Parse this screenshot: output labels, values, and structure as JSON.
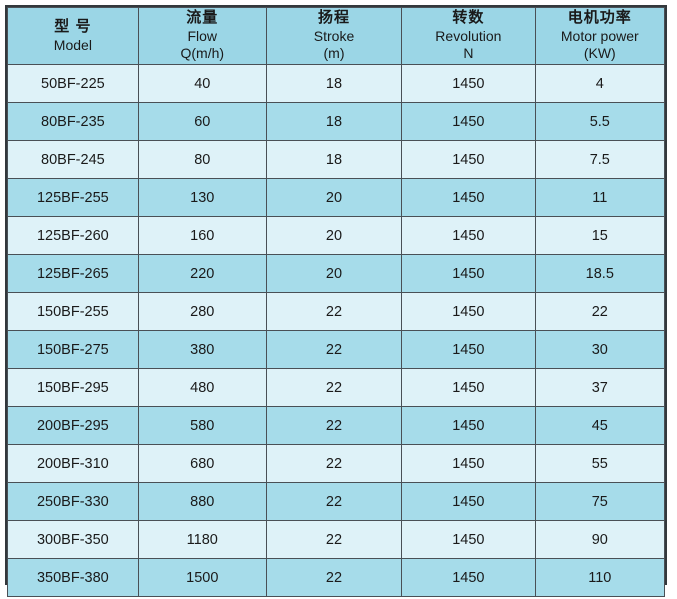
{
  "colors": {
    "header_bg": "#9bd6e6",
    "row_dark": "#a6dcea",
    "row_light": "#def2f8",
    "border_outer": "#33383c",
    "border_inner": "#495056",
    "text": "#1a1a1a"
  },
  "table": {
    "columns": [
      {
        "key": "model",
        "lines": [
          "型 号",
          "Model"
        ]
      },
      {
        "key": "flow",
        "lines": [
          "流量",
          "Flow",
          "Q(m/h)"
        ]
      },
      {
        "key": "stroke",
        "lines": [
          "扬程",
          "Stroke",
          "(m)"
        ]
      },
      {
        "key": "revolution",
        "lines": [
          "转数",
          "Revolution",
          "N"
        ]
      },
      {
        "key": "motor_power",
        "lines": [
          "电机功率",
          "Motor power",
          "(KW)"
        ]
      }
    ],
    "rows": [
      {
        "model": "50BF-225",
        "flow": "40",
        "stroke": "18",
        "revolution": "1450",
        "motor_power": "4"
      },
      {
        "model": "80BF-235",
        "flow": "60",
        "stroke": "18",
        "revolution": "1450",
        "motor_power": "5.5"
      },
      {
        "model": "80BF-245",
        "flow": "80",
        "stroke": "18",
        "revolution": "1450",
        "motor_power": "7.5"
      },
      {
        "model": "125BF-255",
        "flow": "130",
        "stroke": "20",
        "revolution": "1450",
        "motor_power": "11"
      },
      {
        "model": "125BF-260",
        "flow": "160",
        "stroke": "20",
        "revolution": "1450",
        "motor_power": "15"
      },
      {
        "model": "125BF-265",
        "flow": "220",
        "stroke": "20",
        "revolution": "1450",
        "motor_power": "18.5"
      },
      {
        "model": "150BF-255",
        "flow": "280",
        "stroke": "22",
        "revolution": "1450",
        "motor_power": "22"
      },
      {
        "model": "150BF-275",
        "flow": "380",
        "stroke": "22",
        "revolution": "1450",
        "motor_power": "30"
      },
      {
        "model": "150BF-295",
        "flow": "480",
        "stroke": "22",
        "revolution": "1450",
        "motor_power": "37"
      },
      {
        "model": "200BF-295",
        "flow": "580",
        "stroke": "22",
        "revolution": "1450",
        "motor_power": "45"
      },
      {
        "model": "200BF-310",
        "flow": "680",
        "stroke": "22",
        "revolution": "1450",
        "motor_power": "55"
      },
      {
        "model": "250BF-330",
        "flow": "880",
        "stroke": "22",
        "revolution": "1450",
        "motor_power": "75"
      },
      {
        "model": "300BF-350",
        "flow": "1180",
        "stroke": "22",
        "revolution": "1450",
        "motor_power": "90"
      },
      {
        "model": "350BF-380",
        "flow": "1500",
        "stroke": "22",
        "revolution": "1450",
        "motor_power": "110"
      }
    ]
  }
}
